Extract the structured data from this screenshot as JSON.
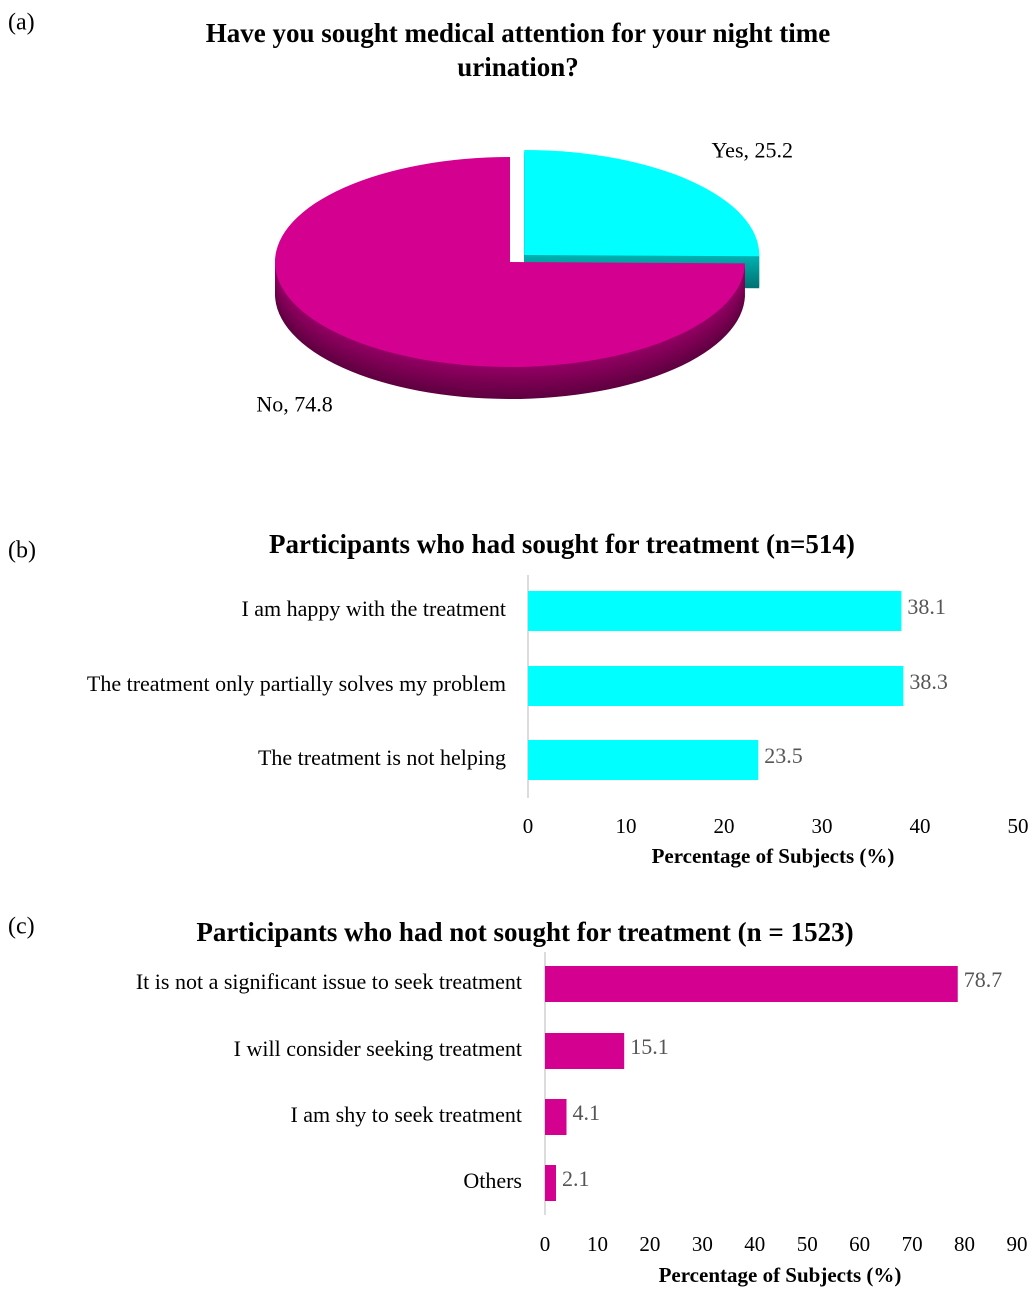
{
  "chart_data": [
    {
      "type": "pie",
      "panel": "(a)",
      "title": [
        "Have you sought medical attention for your night time",
        "urination?"
      ],
      "values": [
        25.2,
        74.8
      ],
      "value_labels": [
        "Yes, 25.2",
        "No, 74.8"
      ],
      "colors": [
        "#00ffff",
        "#d4008f"
      ]
    },
    {
      "type": "barh",
      "panel": "(b)",
      "title": "Participants who had sought for treatment (n=514)",
      "categories": [
        "I am happy with the treatment",
        "The treatment only partially solves my problem",
        "The treatment is not helping"
      ],
      "values": [
        38.1,
        38.3,
        23.5
      ],
      "color": "#00ffff",
      "xlim": [
        0,
        50
      ],
      "xticks": [
        0,
        10,
        20,
        30,
        40,
        50
      ],
      "xlabel": "Percentage of Subjects (%)"
    },
    {
      "type": "barh",
      "panel": "(c)",
      "title": "Participants who had not sought for treatment (n = 1523)",
      "categories": [
        "It is not a significant issue to seek treatment",
        "I will consider seeking treatment",
        "I am shy to seek treatment",
        "Others"
      ],
      "values": [
        78.7,
        15.1,
        4.1,
        2.1
      ],
      "color": "#d4008f",
      "xlim": [
        0,
        90
      ],
      "xticks": [
        0,
        10,
        20,
        30,
        40,
        50,
        60,
        70,
        80,
        90
      ],
      "xlabel": "Percentage of Subjects (%)"
    }
  ]
}
